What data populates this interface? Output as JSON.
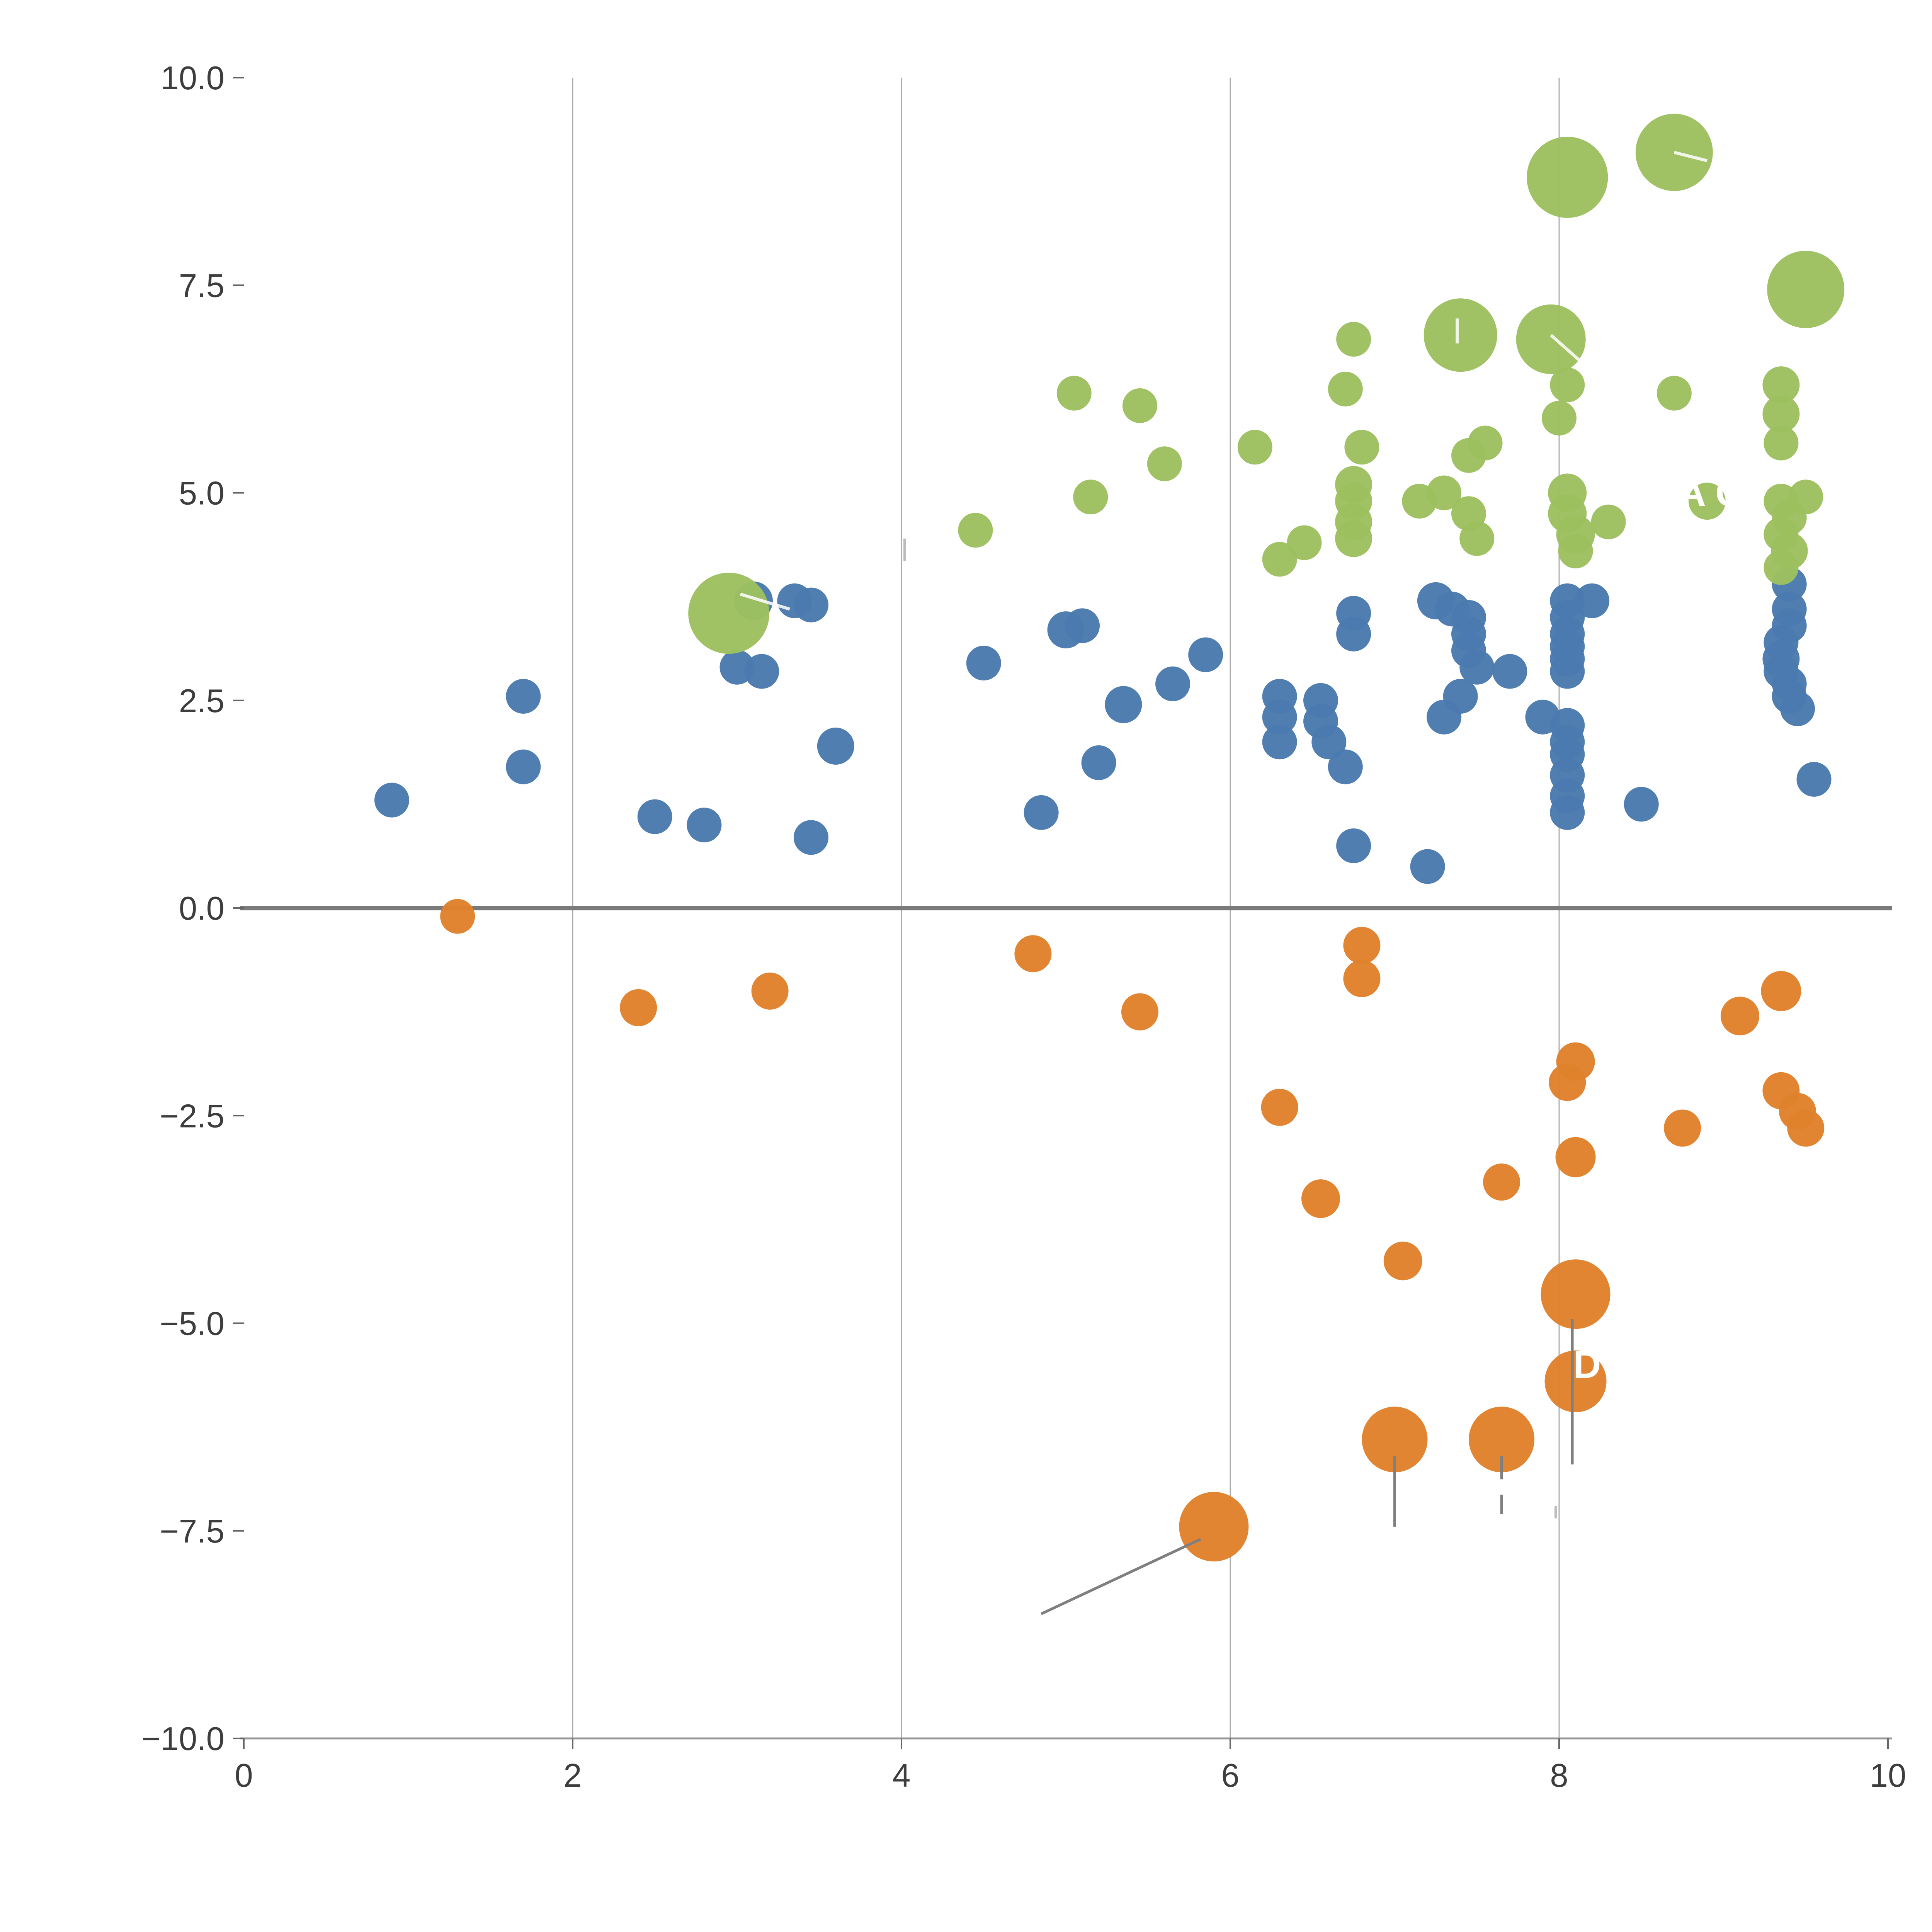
{
  "chart_data": {
    "type": "scatter",
    "title": "",
    "xlabel": "",
    "ylabel": "",
    "xlim": [
      0,
      10
    ],
    "ylim": [
      -10,
      10
    ],
    "x_ticks": [
      0,
      2,
      4,
      6,
      8,
      10
    ],
    "x_tick_labels": [
      "0",
      "2",
      "4",
      "6",
      "8",
      "10"
    ],
    "y_ticks": [
      -10.0,
      -7.5,
      -5.0,
      -2.5,
      0.0,
      2.5,
      5.0,
      7.5,
      10.0
    ],
    "y_tick_labels": [
      "−10.0",
      "−7.5",
      "−5.0",
      "−2.5",
      "0.0",
      "2.5",
      "5.0",
      "7.5",
      "10.0"
    ],
    "grid": {
      "vertical_at": [
        2,
        4,
        6,
        8
      ],
      "color": "#ababab"
    },
    "zero_line": {
      "y": 0,
      "color": "#7a7a7a"
    },
    "axis": {
      "bottom_spine_color": "#9a9a9a",
      "tick_color": "#666666",
      "label_color": "#3d3d3d"
    },
    "series": [
      {
        "name": "blue",
        "color": "#4a7aae",
        "points": [
          [
            0.9,
            1.3,
            45
          ],
          [
            1.7,
            2.55,
            45
          ],
          [
            1.7,
            1.7,
            45
          ],
          [
            2.5,
            1.1,
            45
          ],
          [
            2.8,
            1.0,
            45
          ],
          [
            3.0,
            2.9,
            45
          ],
          [
            3.15,
            2.85,
            45
          ],
          [
            3.1,
            3.7,
            50
          ],
          [
            3.35,
            3.7,
            45
          ],
          [
            3.45,
            3.65,
            45
          ],
          [
            3.45,
            0.85,
            45
          ],
          [
            3.6,
            1.95,
            48
          ],
          [
            4.5,
            2.95,
            45
          ],
          [
            4.85,
            1.15,
            45
          ],
          [
            5.0,
            3.35,
            48
          ],
          [
            5.1,
            3.4,
            45
          ],
          [
            5.2,
            1.75,
            45
          ],
          [
            5.35,
            2.45,
            48
          ],
          [
            5.65,
            2.7,
            45
          ],
          [
            5.85,
            3.05,
            45
          ],
          [
            6.3,
            2.55,
            45
          ],
          [
            6.3,
            2.3,
            45
          ],
          [
            6.3,
            2.0,
            45
          ],
          [
            6.55,
            2.5,
            45
          ],
          [
            6.55,
            2.25,
            45
          ],
          [
            6.6,
            2.0,
            45
          ],
          [
            6.7,
            1.7,
            45
          ],
          [
            6.75,
            3.55,
            45
          ],
          [
            6.75,
            3.3,
            45
          ],
          [
            6.75,
            0.75,
            45
          ],
          [
            7.2,
            0.5,
            45
          ],
          [
            7.25,
            3.7,
            48
          ],
          [
            7.35,
            3.6,
            45
          ],
          [
            7.3,
            2.3,
            45
          ],
          [
            7.4,
            2.55,
            45
          ],
          [
            7.45,
            3.5,
            45
          ],
          [
            7.45,
            3.3,
            45
          ],
          [
            7.45,
            3.1,
            45
          ],
          [
            7.5,
            2.9,
            45
          ],
          [
            7.7,
            2.85,
            45
          ],
          [
            7.9,
            2.3,
            45
          ],
          [
            8.05,
            3.7,
            45
          ],
          [
            8.05,
            3.5,
            45
          ],
          [
            8.05,
            3.3,
            45
          ],
          [
            8.05,
            3.15,
            45
          ],
          [
            8.05,
            3.0,
            45
          ],
          [
            8.05,
            2.85,
            45
          ],
          [
            8.2,
            3.7,
            45
          ],
          [
            8.05,
            2.2,
            45
          ],
          [
            8.05,
            2.0,
            45
          ],
          [
            8.05,
            1.85,
            45
          ],
          [
            8.05,
            1.6,
            45
          ],
          [
            8.05,
            1.35,
            45
          ],
          [
            8.05,
            1.15,
            45
          ],
          [
            8.5,
            1.25,
            45
          ],
          [
            9.35,
            3.0,
            48
          ],
          [
            9.35,
            2.85,
            45
          ],
          [
            9.4,
            2.7,
            45
          ],
          [
            9.4,
            2.55,
            45
          ],
          [
            9.45,
            2.4,
            45
          ],
          [
            9.4,
            3.6,
            45
          ],
          [
            9.4,
            3.4,
            45
          ],
          [
            9.35,
            3.2,
            45
          ],
          [
            9.4,
            3.9,
            45
          ],
          [
            9.55,
            1.55,
            45
          ]
        ]
      },
      {
        "name": "green",
        "color": "#9dc05f",
        "points": [
          [
            2.95,
            3.55,
            105
          ],
          [
            4.45,
            4.55,
            45
          ],
          [
            5.05,
            6.2,
            45
          ],
          [
            5.45,
            6.05,
            45
          ],
          [
            5.15,
            4.95,
            45
          ],
          [
            5.6,
            5.35,
            45
          ],
          [
            6.15,
            5.55,
            45
          ],
          [
            6.3,
            4.2,
            45
          ],
          [
            6.45,
            4.4,
            45
          ],
          [
            6.75,
            6.85,
            45
          ],
          [
            6.7,
            6.25,
            45
          ],
          [
            6.8,
            5.55,
            45
          ],
          [
            6.75,
            5.1,
            48
          ],
          [
            6.75,
            4.9,
            48
          ],
          [
            6.75,
            4.65,
            48
          ],
          [
            6.75,
            4.45,
            48
          ],
          [
            7.15,
            4.9,
            45
          ],
          [
            7.3,
            5.0,
            45
          ],
          [
            7.4,
            6.9,
            95
          ],
          [
            7.45,
            5.45,
            45
          ],
          [
            7.55,
            5.6,
            45
          ],
          [
            7.45,
            4.75,
            45
          ],
          [
            7.5,
            4.45,
            45
          ],
          [
            7.95,
            6.85,
            90
          ],
          [
            8.05,
            8.8,
            105
          ],
          [
            8.05,
            6.3,
            45
          ],
          [
            8.0,
            5.9,
            45
          ],
          [
            8.05,
            5.0,
            50
          ],
          [
            8.05,
            4.75,
            50
          ],
          [
            8.1,
            4.5,
            50
          ],
          [
            8.1,
            4.3,
            45
          ],
          [
            8.3,
            4.65,
            45
          ],
          [
            8.7,
            9.1,
            100
          ],
          [
            8.7,
            6.2,
            45
          ],
          [
            8.9,
            4.9,
            48
          ],
          [
            9.35,
            6.3,
            48
          ],
          [
            9.35,
            5.95,
            48
          ],
          [
            9.35,
            5.6,
            45
          ],
          [
            9.5,
            7.45,
            100
          ],
          [
            9.35,
            4.9,
            45
          ],
          [
            9.5,
            4.95,
            45
          ],
          [
            9.4,
            4.7,
            45
          ],
          [
            9.35,
            4.5,
            45
          ],
          [
            9.4,
            4.3,
            48
          ],
          [
            9.35,
            4.1,
            45
          ]
        ]
      },
      {
        "name": "orange",
        "color": "#e0812c",
        "points": [
          [
            1.3,
            -0.1,
            45
          ],
          [
            2.4,
            -1.2,
            48
          ],
          [
            3.2,
            -1.0,
            48
          ],
          [
            4.8,
            -0.55,
            48
          ],
          [
            5.45,
            -1.25,
            48
          ],
          [
            6.3,
            -2.4,
            48
          ],
          [
            6.55,
            -3.5,
            50
          ],
          [
            6.8,
            -0.45,
            48
          ],
          [
            6.8,
            -0.85,
            48
          ],
          [
            7.05,
            -4.25,
            50
          ],
          [
            7.0,
            -6.4,
            85
          ],
          [
            7.65,
            -3.3,
            48
          ],
          [
            7.65,
            -6.4,
            85
          ],
          [
            8.1,
            -1.85,
            50
          ],
          [
            8.05,
            -2.1,
            48
          ],
          [
            8.1,
            -3.0,
            52
          ],
          [
            8.1,
            -4.65,
            90
          ],
          [
            8.1,
            -5.7,
            80
          ],
          [
            8.75,
            -2.65,
            48
          ],
          [
            9.1,
            -1.3,
            50
          ],
          [
            9.35,
            -1.0,
            52
          ],
          [
            9.35,
            -2.2,
            48
          ],
          [
            9.45,
            -2.45,
            48
          ],
          [
            9.5,
            -2.65,
            48
          ],
          [
            5.9,
            -7.45,
            90
          ]
        ]
      }
    ],
    "leader_lines": [
      {
        "x1": 5.82,
        "y1": -7.6,
        "x2": 4.85,
        "y2": -8.5,
        "color": "#7f7f7f",
        "dash": false
      },
      {
        "x1": 7.0,
        "y1": -6.6,
        "x2": 7.0,
        "y2": -7.45,
        "color": "#7f7f7f",
        "dash": false
      },
      {
        "x1": 7.65,
        "y1": -6.6,
        "x2": 7.65,
        "y2": -7.3,
        "color": "#7f7f7f",
        "dash": true
      },
      {
        "x1": 8.08,
        "y1": -4.95,
        "x2": 8.08,
        "y2": -6.7,
        "color": "#7f7f7f",
        "dash": false
      },
      {
        "x1": 4.02,
        "y1": 4.45,
        "x2": 4.02,
        "y2": 4.18,
        "color": "#bdbdbd",
        "dash": false
      },
      {
        "x1": 7.98,
        "y1": -7.2,
        "x2": 7.98,
        "y2": -7.35,
        "color": "#bdbdbd",
        "dash": false
      }
    ],
    "white_marks": [
      {
        "x1": 7.95,
        "y1": 6.9,
        "x2": 8.15,
        "y2": 6.55
      },
      {
        "x1": 8.7,
        "y1": 9.1,
        "x2": 8.9,
        "y2": 9.0
      },
      {
        "x1": 7.38,
        "y1": 7.1,
        "x2": 7.38,
        "y2": 6.8
      },
      {
        "x1": 3.02,
        "y1": 3.78,
        "x2": 3.32,
        "y2": 3.6
      }
    ],
    "annotations": [
      {
        "text": "SA O",
        "x": 8.85,
        "y": 5.0,
        "color": "#ffffff"
      },
      {
        "text": "D",
        "x": 8.17,
        "y": -5.5,
        "color": "#ffffff"
      }
    ]
  }
}
